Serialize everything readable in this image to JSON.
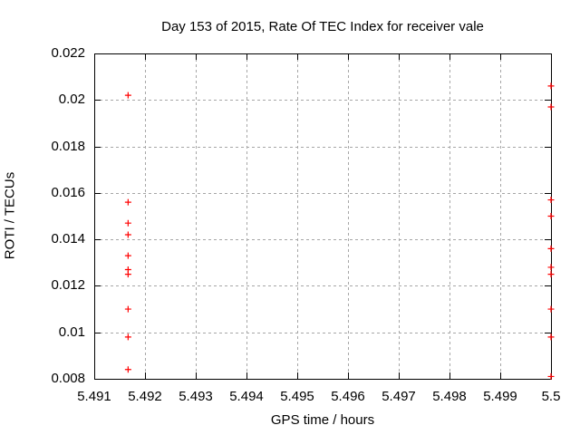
{
  "chart_data": {
    "type": "scatter",
    "title": "Day 153 of 2015, Rate Of TEC Index for receiver vale",
    "xlabel": "GPS time / hours",
    "ylabel": "ROTI / TECUs",
    "xlim": [
      5.491,
      5.5
    ],
    "ylim": [
      0.008,
      0.022
    ],
    "x_ticks": [
      5.491,
      5.492,
      5.493,
      5.494,
      5.495,
      5.496,
      5.497,
      5.498,
      5.499,
      5.5
    ],
    "x_tick_labels": [
      "5.491",
      "5.492",
      "5.493",
      "5.494",
      "5.495",
      "5.496",
      "5.497",
      "5.498",
      "5.499",
      "5.5"
    ],
    "y_ticks": [
      0.008,
      0.01,
      0.012,
      0.014,
      0.016,
      0.018,
      0.02,
      0.022
    ],
    "y_tick_labels": [
      "0.008",
      "0.01",
      "0.012",
      "0.014",
      "0.016",
      "0.018",
      "0.02",
      "0.022"
    ],
    "grid": true,
    "legend": "none",
    "marker": "plus",
    "marker_color": "#ff0000",
    "grid_color": "#a6a6a6",
    "axis_color": "#000000",
    "background_color": "#ffffff",
    "series": [
      {
        "name": "ROTI",
        "points": [
          [
            5.491667,
            0.0202
          ],
          [
            5.491667,
            0.0156
          ],
          [
            5.491667,
            0.0147
          ],
          [
            5.491667,
            0.0142
          ],
          [
            5.491667,
            0.0133
          ],
          [
            5.491667,
            0.0127
          ],
          [
            5.491667,
            0.0125
          ],
          [
            5.491667,
            0.011
          ],
          [
            5.491667,
            0.0098
          ],
          [
            5.491667,
            0.0084
          ],
          [
            5.5,
            0.0206
          ],
          [
            5.5,
            0.0197
          ],
          [
            5.5,
            0.0157
          ],
          [
            5.5,
            0.015
          ],
          [
            5.5,
            0.0136
          ],
          [
            5.5,
            0.0128
          ],
          [
            5.5,
            0.0125
          ],
          [
            5.5,
            0.011
          ],
          [
            5.5,
            0.0098
          ],
          [
            5.5,
            0.0081
          ]
        ]
      }
    ]
  }
}
